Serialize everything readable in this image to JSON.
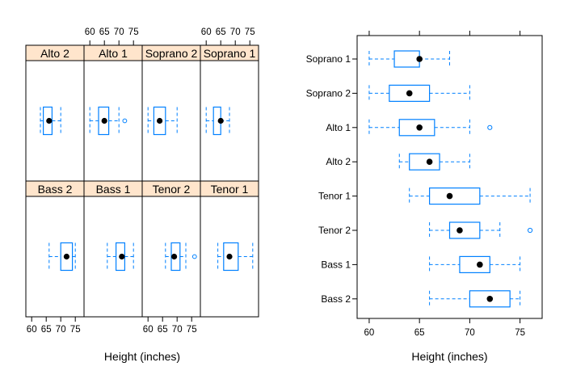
{
  "chart_data": [
    {
      "type": "boxplot",
      "layout": "trellis 4 columns x 2 rows",
      "xlabel": "Height (inches)",
      "xlim": [
        58,
        78
      ],
      "x_ticks": [
        60,
        65,
        70,
        75
      ],
      "x_tick_labels": [
        "60",
        "65",
        "70",
        "75"
      ],
      "panels": [
        {
          "name": "Alto 2",
          "min": 63,
          "q1": 64,
          "median": 66,
          "q3": 67,
          "max": 70,
          "outliers": []
        },
        {
          "name": "Alto 1",
          "min": 60,
          "q1": 63,
          "median": 65,
          "q3": 66.5,
          "max": 70,
          "outliers": [
            72
          ]
        },
        {
          "name": "Soprano 2",
          "min": 60,
          "q1": 62,
          "median": 64,
          "q3": 66,
          "max": 70,
          "outliers": []
        },
        {
          "name": "Soprano 1",
          "min": 60,
          "q1": 62.5,
          "median": 65,
          "q3": 65,
          "max": 68,
          "outliers": []
        },
        {
          "name": "Bass 2",
          "min": 66,
          "q1": 70,
          "median": 72,
          "q3": 74,
          "max": 75,
          "outliers": []
        },
        {
          "name": "Bass 1",
          "min": 66,
          "q1": 69,
          "median": 71,
          "q3": 72,
          "max": 75,
          "outliers": []
        },
        {
          "name": "Tenor 2",
          "min": 66,
          "q1": 68,
          "median": 69,
          "q3": 71,
          "max": 73,
          "outliers": [
            76
          ]
        },
        {
          "name": "Tenor 1",
          "min": 64,
          "q1": 66,
          "median": 68,
          "q3": 71,
          "max": 76,
          "outliers": []
        }
      ]
    },
    {
      "type": "boxplot",
      "orientation": "horizontal",
      "xlabel": "Height (inches)",
      "xlim": [
        58.8,
        77.2
      ],
      "x_ticks": [
        60,
        65,
        70,
        75
      ],
      "x_tick_labels": [
        "60",
        "65",
        "70",
        "75"
      ],
      "categories": [
        "Soprano 1",
        "Soprano 2",
        "Alto 1",
        "Alto 2",
        "Tenor 1",
        "Tenor 2",
        "Bass 1",
        "Bass 2"
      ],
      "series": [
        {
          "name": "Soprano 1",
          "min": 60,
          "q1": 62.5,
          "median": 65,
          "q3": 65,
          "max": 68,
          "outliers": []
        },
        {
          "name": "Soprano 2",
          "min": 60,
          "q1": 62,
          "median": 64,
          "q3": 66,
          "max": 70,
          "outliers": []
        },
        {
          "name": "Alto 1",
          "min": 60,
          "q1": 63,
          "median": 65,
          "q3": 66.5,
          "max": 70,
          "outliers": [
            72
          ]
        },
        {
          "name": "Alto 2",
          "min": 63,
          "q1": 64,
          "median": 66,
          "q3": 67,
          "max": 70,
          "outliers": []
        },
        {
          "name": "Tenor 1",
          "min": 64,
          "q1": 66,
          "median": 68,
          "q3": 71,
          "max": 76,
          "outliers": []
        },
        {
          "name": "Tenor 2",
          "min": 66,
          "q1": 68,
          "median": 69,
          "q3": 71,
          "max": 73,
          "outliers": [
            76
          ]
        },
        {
          "name": "Bass 1",
          "min": 66,
          "q1": 69,
          "median": 71,
          "q3": 72,
          "max": 75,
          "outliers": []
        },
        {
          "name": "Bass 2",
          "min": 66,
          "q1": 70,
          "median": 72,
          "q3": 74,
          "max": 75,
          "outliers": []
        }
      ]
    }
  ],
  "colors": {
    "box": "#0080ff",
    "whisker": "#0080ff",
    "median_dot": "#000000",
    "strip_bg": "#ffe5cc",
    "frame": "#000000"
  }
}
